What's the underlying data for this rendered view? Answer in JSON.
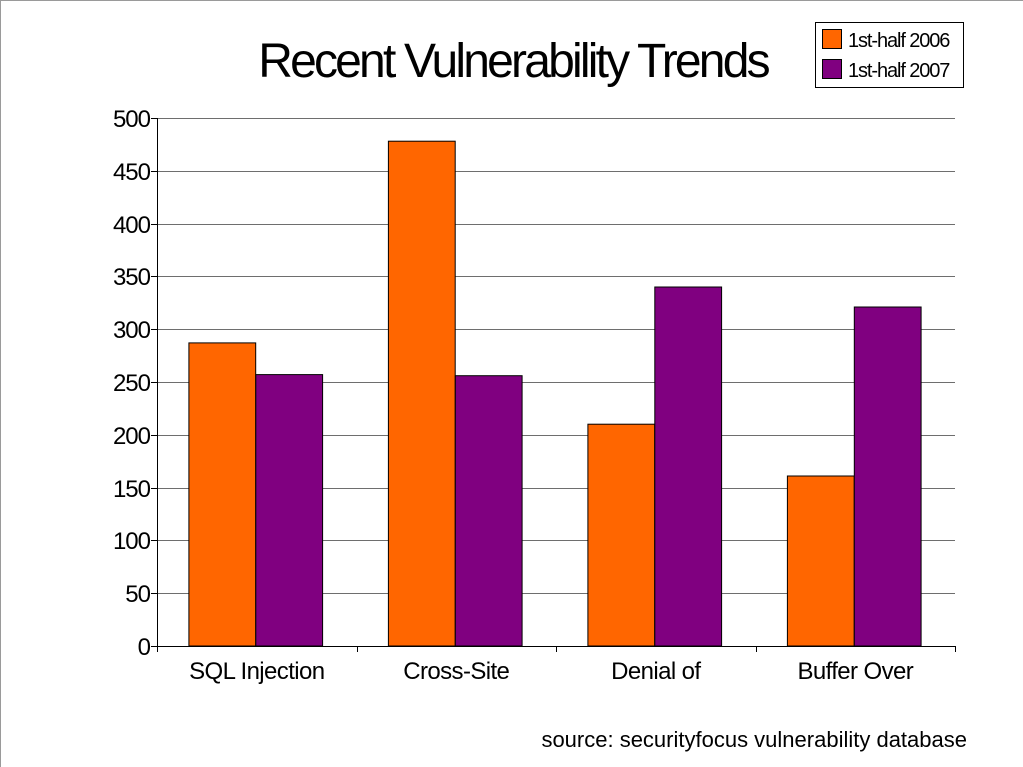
{
  "slide": {
    "source_note": "source: securityfocus vulnerability database"
  },
  "chart_data": {
    "type": "bar",
    "title": "Recent Vulnerability Trends",
    "xlabel": "",
    "ylabel": "",
    "categories": [
      "SQL Injection",
      "Cross-Site",
      "Denial of",
      "Buffer Over"
    ],
    "series": [
      {
        "name": "1st-half 2006",
        "color": "#FF6600",
        "values": [
          287,
          478,
          210,
          161
        ]
      },
      {
        "name": "1st-half 2007",
        "color": "#800080",
        "values": [
          257,
          256,
          340,
          321
        ]
      }
    ],
    "ylim": [
      0,
      500
    ],
    "yticks": [
      0,
      50,
      100,
      150,
      200,
      250,
      300,
      350,
      400,
      450,
      500
    ],
    "grid": true,
    "legend": "top-right"
  }
}
